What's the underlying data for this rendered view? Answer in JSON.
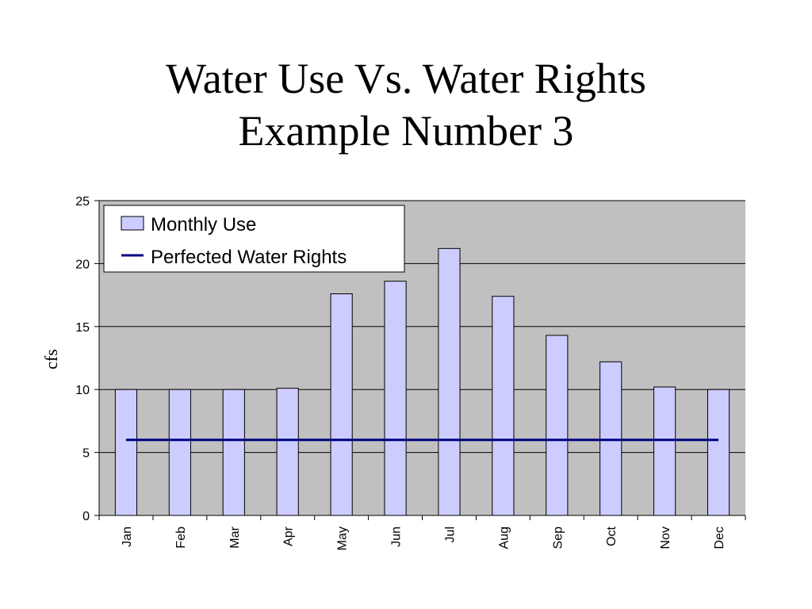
{
  "slide": {
    "title_line1": "Water Use Vs. Water Rights",
    "title_line2": "Example Number 3"
  },
  "colors": {
    "plot_background": "#c0c0c0",
    "bar_fill": "#ccccff",
    "bar_stroke": "#000000",
    "line_color": "#000080",
    "gridline": "#000000"
  },
  "chart_data": {
    "type": "bar",
    "title": "",
    "xlabel": "",
    "ylabel": "cfs",
    "ylim": [
      0,
      25
    ],
    "yticks": [
      0,
      5,
      10,
      15,
      20,
      25
    ],
    "grid": true,
    "legend_position": "top-left",
    "categories": [
      "Jan",
      "Feb",
      "Mar",
      "Apr",
      "May",
      "Jun",
      "Jul",
      "Aug",
      "Sep",
      "Oct",
      "Nov",
      "Dec"
    ],
    "series": [
      {
        "name": "Monthly Use",
        "type": "bar",
        "values": [
          10,
          10,
          10,
          10.1,
          17.6,
          18.6,
          21.2,
          17.4,
          14.3,
          12.2,
          10.2,
          10
        ]
      },
      {
        "name": "Perfected Water Rights",
        "type": "line",
        "values": [
          6,
          6,
          6,
          6,
          6,
          6,
          6,
          6,
          6,
          6,
          6,
          6
        ]
      }
    ]
  }
}
